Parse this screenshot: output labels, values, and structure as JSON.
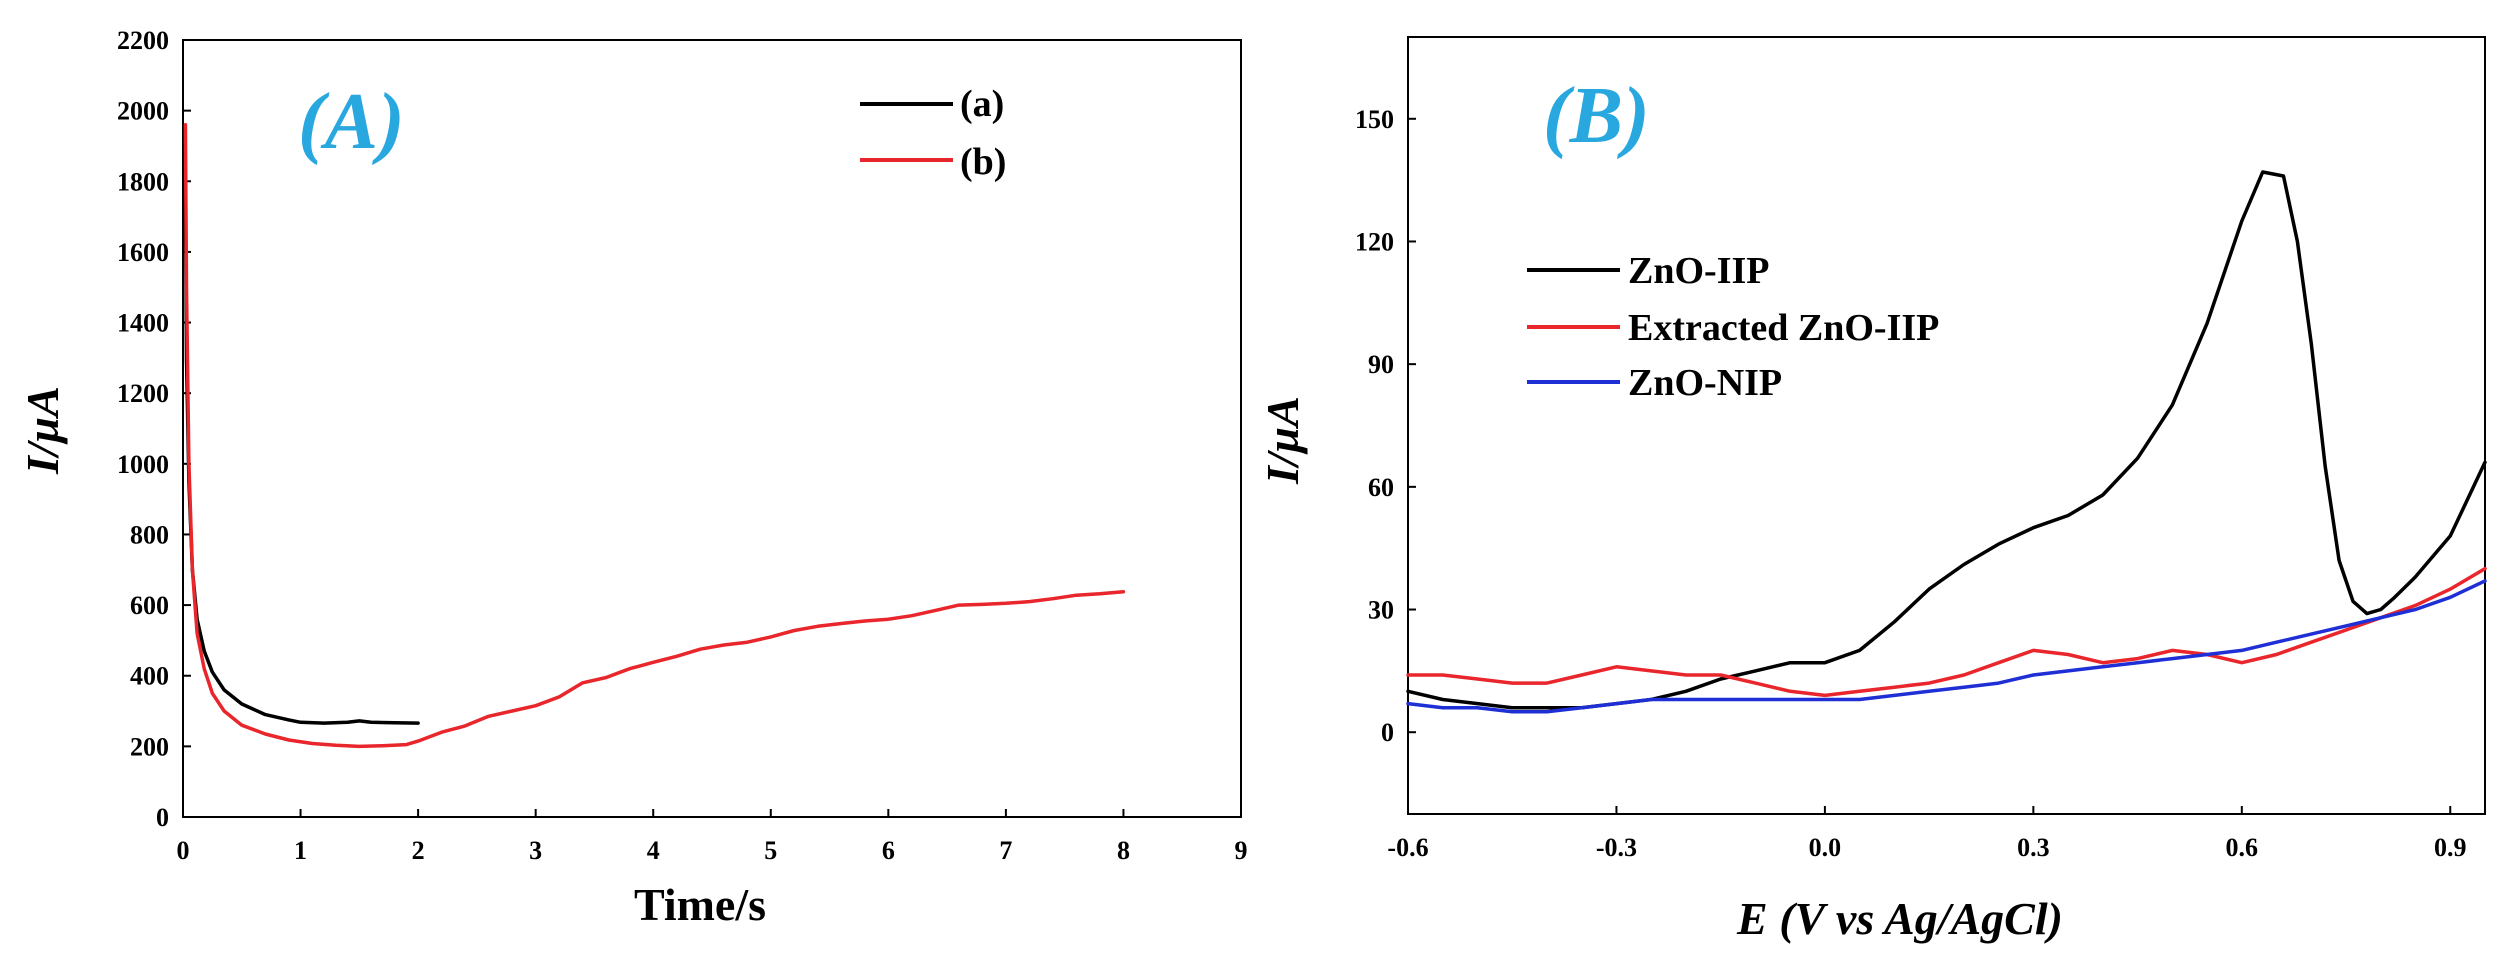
{
  "chart_data": [
    {
      "type": "line",
      "panel_label": "(A)",
      "xlabel": "Time/s",
      "ylabel": "I/µA",
      "xlim": [
        0,
        9
      ],
      "ylim": [
        0,
        2200
      ],
      "x_ticks": [
        "0",
        "1",
        "2",
        "3",
        "4",
        "5",
        "6",
        "7",
        "8",
        "9"
      ],
      "y_ticks": [
        "0",
        "200",
        "400",
        "600",
        "800",
        "1000",
        "1200",
        "1400",
        "1600",
        "1800",
        "2000",
        "2200"
      ],
      "legend_position": "top-right",
      "series": [
        {
          "name": "(a)",
          "color": "#000000",
          "x": [
            0.02,
            0.03,
            0.05,
            0.08,
            0.12,
            0.18,
            0.25,
            0.35,
            0.5,
            0.7,
            0.9,
            1.0,
            1.2,
            1.4,
            1.5,
            1.6,
            1.8,
            2.0
          ],
          "y": [
            1800,
            1300,
            950,
            700,
            560,
            470,
            410,
            360,
            320,
            290,
            275,
            268,
            266,
            268,
            272,
            268,
            267,
            266
          ]
        },
        {
          "name": "(b)",
          "color": "#e8262b",
          "x": [
            0.02,
            0.03,
            0.05,
            0.08,
            0.12,
            0.18,
            0.25,
            0.35,
            0.5,
            0.7,
            0.9,
            1.1,
            1.3,
            1.5,
            1.7,
            1.9,
            2.0,
            2.2,
            2.4,
            2.6,
            2.8,
            3.0,
            3.2,
            3.4,
            3.6,
            3.8,
            4.0,
            4.2,
            4.4,
            4.6,
            4.8,
            5.0,
            5.2,
            5.4,
            5.6,
            5.8,
            6.0,
            6.2,
            6.4,
            6.6,
            6.8,
            7.0,
            7.2,
            7.4,
            7.6,
            7.8,
            8.0
          ],
          "y": [
            1960,
            1500,
            1000,
            700,
            520,
            420,
            350,
            300,
            260,
            235,
            218,
            208,
            203,
            200,
            202,
            205,
            215,
            240,
            258,
            285,
            300,
            315,
            340,
            380,
            395,
            420,
            438,
            455,
            475,
            487,
            495,
            510,
            528,
            540,
            548,
            555,
            560,
            570,
            585,
            600,
            602,
            605,
            610,
            618,
            628,
            632,
            638
          ]
        }
      ]
    },
    {
      "type": "line",
      "panel_label": "(B)",
      "xlabel": "E (V vs Ag/AgCl)",
      "ylabel": "I/µA",
      "xlim": [
        -0.6,
        0.95
      ],
      "ylim": [
        -20,
        170
      ],
      "x_ticks": [
        "-0.6",
        "-0.3",
        "0.0",
        "0.3",
        "0.6",
        "0.9"
      ],
      "y_ticks": [
        "0",
        "30",
        "60",
        "90",
        "120",
        "150"
      ],
      "legend_position": "top-left",
      "series": [
        {
          "name": "ZnO-IIP",
          "color": "#000000",
          "x": [
            -0.6,
            -0.55,
            -0.5,
            -0.45,
            -0.4,
            -0.35,
            -0.3,
            -0.25,
            -0.2,
            -0.15,
            -0.1,
            -0.05,
            0.0,
            0.05,
            0.1,
            0.15,
            0.2,
            0.25,
            0.3,
            0.35,
            0.4,
            0.45,
            0.5,
            0.55,
            0.6,
            0.63,
            0.66,
            0.68,
            0.7,
            0.72,
            0.74,
            0.76,
            0.78,
            0.8,
            0.82,
            0.85,
            0.9,
            0.95
          ],
          "y": [
            10,
            8,
            7,
            6,
            6,
            6,
            7,
            8,
            10,
            13,
            15,
            17,
            17,
            20,
            27,
            35,
            41,
            46,
            50,
            53,
            58,
            67,
            80,
            100,
            125,
            137,
            136,
            120,
            95,
            65,
            42,
            32,
            29,
            30,
            33,
            38,
            48,
            66
          ]
        },
        {
          "name": "Extracted ZnO-IIP",
          "color": "#e8262b",
          "x": [
            -0.6,
            -0.55,
            -0.5,
            -0.45,
            -0.4,
            -0.35,
            -0.3,
            -0.25,
            -0.2,
            -0.15,
            -0.1,
            -0.05,
            0.0,
            0.05,
            0.1,
            0.15,
            0.2,
            0.25,
            0.3,
            0.35,
            0.4,
            0.45,
            0.5,
            0.55,
            0.6,
            0.65,
            0.7,
            0.75,
            0.8,
            0.85,
            0.9,
            0.95
          ],
          "y": [
            14,
            14,
            13,
            12,
            12,
            14,
            16,
            15,
            14,
            14,
            12,
            10,
            9,
            10,
            11,
            12,
            14,
            17,
            20,
            19,
            17,
            18,
            20,
            19,
            17,
            19,
            22,
            25,
            28,
            31,
            35,
            40
          ]
        },
        {
          "name": "ZnO-NIP",
          "color": "#1f2fd6",
          "x": [
            -0.6,
            -0.55,
            -0.5,
            -0.45,
            -0.4,
            -0.35,
            -0.3,
            -0.25,
            -0.2,
            -0.15,
            -0.1,
            -0.05,
            0.0,
            0.05,
            0.1,
            0.15,
            0.2,
            0.25,
            0.3,
            0.35,
            0.4,
            0.45,
            0.5,
            0.55,
            0.6,
            0.65,
            0.7,
            0.75,
            0.8,
            0.85,
            0.9,
            0.95
          ],
          "y": [
            7,
            6,
            6,
            5,
            5,
            6,
            7,
            8,
            8,
            8,
            8,
            8,
            8,
            8,
            9,
            10,
            11,
            12,
            14,
            15,
            16,
            17,
            18,
            19,
            20,
            22,
            24,
            26,
            28,
            30,
            33,
            37
          ]
        }
      ]
    }
  ]
}
